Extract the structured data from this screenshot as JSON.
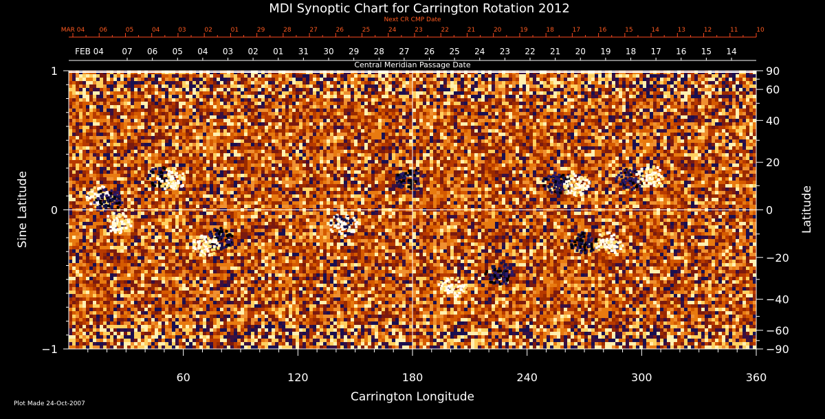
{
  "chart_data": {
    "type": "heatmap",
    "title": "MDI Synoptic Chart for Carrington Rotation 2012",
    "xlabel": "Carrington Longitude",
    "ylabel_left": "Sine Latitude",
    "ylabel_right": "Latitude",
    "xlim": [
      0,
      360
    ],
    "ylim": [
      -1,
      1
    ],
    "x_ticks": [
      60,
      120,
      180,
      240,
      300,
      360
    ],
    "y_left_ticks": [
      {
        "value": 1,
        "label": "1"
      },
      {
        "value": 0,
        "label": "0"
      },
      {
        "value": -1,
        "label": "−1"
      }
    ],
    "y_right_ticks": [
      {
        "deg": 90,
        "label": "90"
      },
      {
        "deg": 60,
        "label": "60"
      },
      {
        "deg": 40,
        "label": "40"
      },
      {
        "deg": 20,
        "label": "20"
      },
      {
        "deg": 0,
        "label": "0"
      },
      {
        "deg": -20,
        "label": "−20"
      },
      {
        "deg": -40,
        "label": "−40"
      },
      {
        "deg": -60,
        "label": "−60"
      },
      {
        "deg": -90,
        "label": "−90"
      }
    ],
    "top_axis_title": "Next CR CMP Date",
    "top_axis_labels": [
      "MAR 04",
      "06",
      "05",
      "04",
      "03",
      "02",
      "01",
      "29",
      "28",
      "27",
      "26",
      "25",
      "24",
      "23",
      "22",
      "21",
      "20",
      "19",
      "18",
      "17",
      "16",
      "15",
      "14",
      "13",
      "12",
      "11",
      "10"
    ],
    "bottom_date_axis_title": "Central Meridian Passage Date",
    "bottom_date_axis_labels": [
      "FEB 04",
      "07",
      "06",
      "05",
      "04",
      "03",
      "02",
      "01",
      "31",
      "30",
      "29",
      "28",
      "27",
      "26",
      "25",
      "24",
      "23",
      "22",
      "21",
      "20",
      "19",
      "18",
      "17",
      "16",
      "15",
      "14"
    ],
    "active_regions": [
      {
        "lon": 48,
        "sinlat": 0.24,
        "polarity": "negative"
      },
      {
        "lon": 53,
        "sinlat": 0.23,
        "polarity": "positive"
      },
      {
        "lon": 16,
        "sinlat": 0.1,
        "polarity": "positive"
      },
      {
        "lon": 20,
        "sinlat": 0.08,
        "polarity": "negative"
      },
      {
        "lon": 25,
        "sinlat": -0.08,
        "polarity": "positive"
      },
      {
        "lon": 78,
        "sinlat": -0.2,
        "polarity": "negative"
      },
      {
        "lon": 71,
        "sinlat": -0.25,
        "polarity": "positive"
      },
      {
        "lon": 143,
        "sinlat": -0.1,
        "polarity": "mixed"
      },
      {
        "lon": 178,
        "sinlat": 0.22,
        "polarity": "negative"
      },
      {
        "lon": 255,
        "sinlat": 0.2,
        "polarity": "negative"
      },
      {
        "lon": 265,
        "sinlat": 0.19,
        "polarity": "positive"
      },
      {
        "lon": 293,
        "sinlat": 0.23,
        "polarity": "negative"
      },
      {
        "lon": 304,
        "sinlat": 0.25,
        "polarity": "positive"
      },
      {
        "lon": 282,
        "sinlat": -0.23,
        "polarity": "positive"
      },
      {
        "lon": 269,
        "sinlat": -0.23,
        "polarity": "negative"
      },
      {
        "lon": 200,
        "sinlat": -0.55,
        "polarity": "positive"
      },
      {
        "lon": 225,
        "sinlat": -0.45,
        "polarity": "negative"
      }
    ],
    "colors": {
      "positive": "#fffbe0",
      "negative": "#12124a",
      "background": "#c04400"
    }
  },
  "footer": {
    "plot_made": "Plot Made 24-Oct-2007"
  }
}
